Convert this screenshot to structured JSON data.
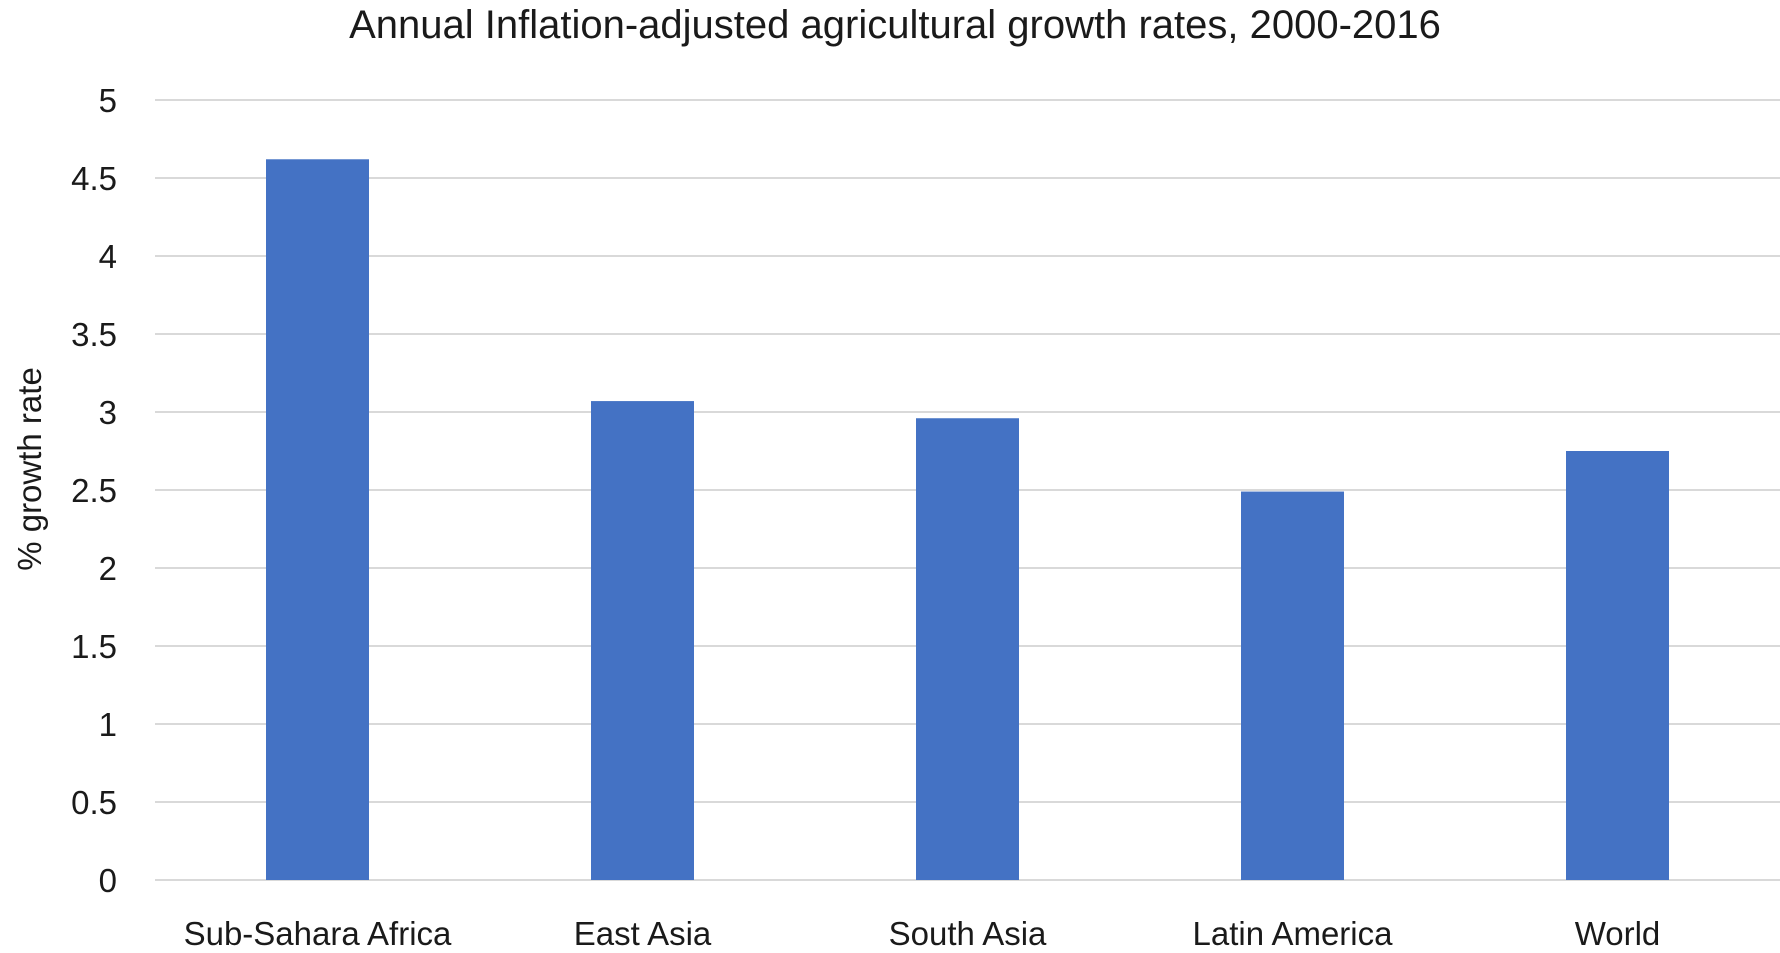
{
  "chart_data": {
    "type": "bar",
    "title": "Annual Inflation-adjusted agricultural  growth rates, 2000-2016",
    "xlabel": "",
    "ylabel": "% growth rate",
    "categories": [
      "Sub-Sahara Africa",
      "East Asia",
      "South Asia",
      "Latin America",
      "World"
    ],
    "values": [
      4.62,
      3.07,
      2.96,
      2.49,
      2.75
    ],
    "ylim": [
      0,
      5
    ],
    "yticks": [
      "0",
      "0.5",
      "1",
      "1.5",
      "2",
      "2.5",
      "3",
      "3.5",
      "4",
      "4.5",
      "5"
    ],
    "grid": true,
    "legend": "none",
    "bar_color": "#4472C4"
  }
}
